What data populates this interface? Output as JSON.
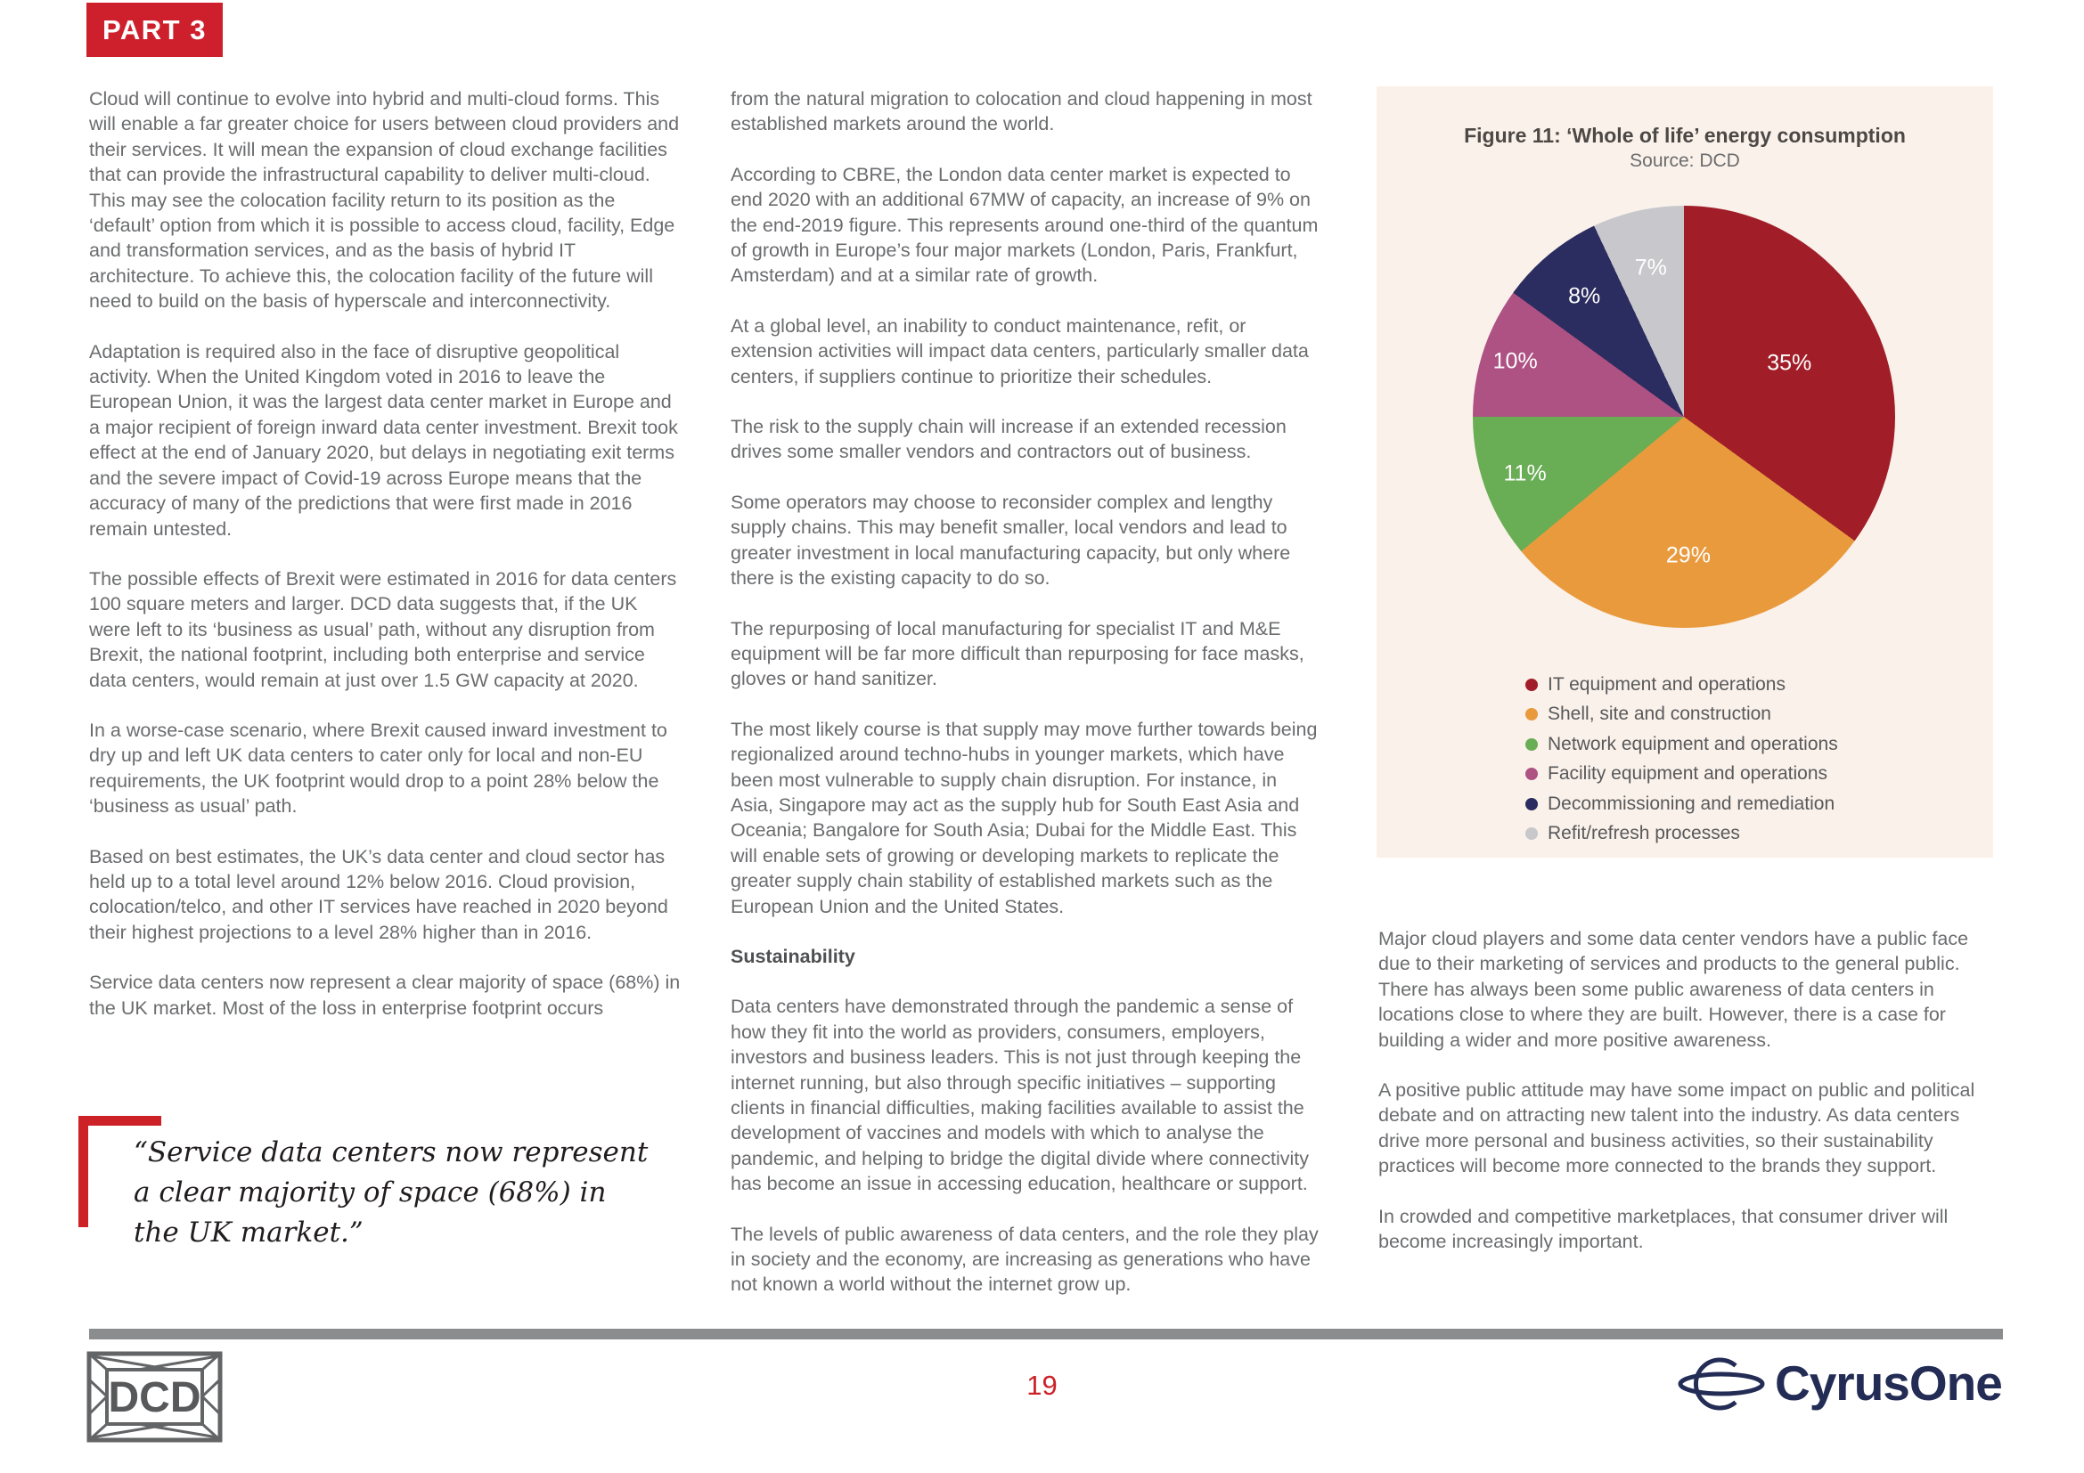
{
  "page": {
    "part_label": "PART 3",
    "page_number": "19"
  },
  "columns": {
    "left": {
      "paragraphs": [
        "Cloud will continue to evolve into hybrid and multi-cloud forms. This will enable a far greater choice for users between cloud providers and their services. It will mean the expansion of cloud exchange facilities that can provide the infrastructural capability to deliver multi-cloud. This may see the colocation facility return to its position as the ‘default’ option from which it is possible to access cloud, facility, Edge and transformation services, and as the basis of hybrid IT architecture. To achieve this, the colocation facility of the future will need to build on the basis of hyperscale and interconnectivity.",
        "Adaptation is required also in the face of disruptive geopolitical activity. When the United Kingdom voted in 2016 to leave the European Union, it was the largest data center market in Europe and a major recipient of foreign inward data center investment. Brexit took effect at the end of January 2020, but delays in negotiating exit terms and the severe impact of Covid-19 across Europe means that the accuracy of many of the predictions that were first made in 2016 remain untested.",
        "The possible effects of Brexit were estimated in 2016 for data centers 100 square meters and larger. DCD data suggests that, if the UK were left to its ‘business as usual’ path, without any disruption from Brexit, the national footprint, including both enterprise and service data centers, would remain at just over 1.5 GW capacity at 2020.",
        "In a worse-case scenario, where Brexit caused inward investment to dry up and left UK data centers to cater only for local and non-EU requirements, the UK footprint would drop to a point 28% below the ‘business as usual’ path.",
        "Based on best estimates, the UK’s data center and cloud sector has held up to a total level around 12% below 2016. Cloud provision, colocation/telco, and other IT services have reached in 2020 beyond their highest projections to a level 28% higher than in 2016.",
        "Service data centers now represent a clear majority of space (68%) in the UK market. Most of the loss in enterprise footprint occurs"
      ]
    },
    "middle": {
      "paragraphs": [
        "from the natural migration to colocation and cloud happening in most established markets around the world.",
        "According to CBRE, the London data center market is expected to end 2020 with an additional 67MW of capacity, an increase of 9% on the end-2019 figure. This represents around one-third of the quantum of growth in Europe’s four major markets (London, Paris, Frankfurt, Amsterdam) and at a similar rate of growth.",
        "At a global level, an inability to conduct maintenance, refit, or extension activities will impact data centers, particularly smaller data centers, if suppliers continue to prioritize their schedules.",
        "The risk to the supply chain will increase if an extended recession drives some smaller vendors and contractors out of business.",
        "Some operators may choose to reconsider complex and lengthy supply chains. This may benefit smaller, local vendors and lead to greater investment in local manufacturing capacity, but only where there is the existing capacity to do so.",
        "The repurposing of local manufacturing for specialist IT and M&E equipment will be far more difficult than repurposing for face masks, gloves or hand sanitizer.",
        "The most likely course is that supply may move further towards being regionalized around techno-hubs in younger markets, which have been most vulnerable to supply chain disruption. For instance, in Asia, Singapore may act as the supply hub for South East Asia and Oceania; Bangalore for South Asia; Dubai for the Middle East. This will enable sets of growing or developing markets to replicate the greater supply chain stability of established markets such as the European Union and the United States."
      ],
      "heading": "Sustainability",
      "paragraphs_after": [
        "Data centers have demonstrated through the pandemic a sense of how they fit into the world as providers, consumers, employers, investors and business leaders. This is not just through keeping the internet running, but also through specific initiatives – supporting clients in financial difficulties, making facilities available to assist the development of vaccines and models with which to analyse the pandemic, and helping to bridge the digital divide where connectivity has become an issue in accessing education, healthcare or support.",
        "The levels of public awareness of data centers, and the role they play in society and the economy, are increasing as generations who have not known a world without the internet grow up."
      ]
    },
    "right": {
      "paragraphs": [
        "Major cloud players and some data center vendors have a public face due to their marketing of services and products to the general public. There has always been some public awareness of data centers in locations close to where they are built. However, there is a case for building a wider and more positive awareness.",
        "A positive public attitude may have some impact on public and political debate and on attracting new talent into the industry. As data centers drive more personal and business activities, so their sustainability practices will become more connected to the brands they support.",
        "In crowded and competitive marketplaces, that consumer driver will become increasingly important."
      ]
    }
  },
  "pull_quote": {
    "text": "“Service data centers now represent a clear majority of space (68%) in the UK market.”"
  },
  "chart_data": {
    "type": "pie",
    "title": "Figure 11: ‘Whole of life’ energy consumption",
    "source": "Source: DCD",
    "direction": "clockwise",
    "start_angle_deg": 0,
    "legend_position": "bottom-left",
    "panel_background": "#faf1ea",
    "slices": [
      {
        "label": "IT equipment and operations",
        "value": 35,
        "color": "#a11d28"
      },
      {
        "label": "Shell, site and construction",
        "value": 29,
        "color": "#e99a3d"
      },
      {
        "label": "Network equipment and operations",
        "value": 11,
        "color": "#69ad55"
      },
      {
        "label": "Facility equipment and operations",
        "value": 10,
        "color": "#ae5183"
      },
      {
        "label": "Decommissioning and remediation",
        "value": 8,
        "color": "#2b2c5f"
      },
      {
        "label": "Refit/refresh processes",
        "value": 7,
        "color": "#c8c8cc"
      }
    ]
  },
  "footer": {
    "dcd_logo_text": "DCD",
    "cyrusone_logo_text": "CyrusOne."
  }
}
